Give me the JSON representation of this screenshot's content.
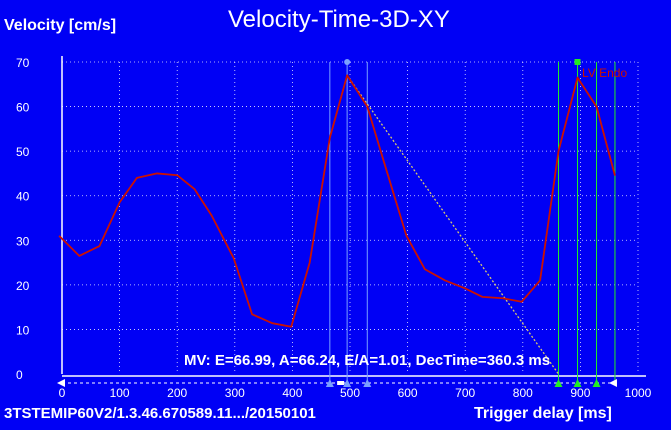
{
  "window": {
    "title": "Velocity-Time-3D-XY",
    "study_id": "3TSTEMIP60V2/1.3.46.670589.11.../20150101"
  },
  "measurement": {
    "readout": "MV: E=66.99, A=66.24, E/A=1.01, DecTime=360.3 ms"
  },
  "colors": {
    "background": "#0000f5",
    "curve": "#cc1100",
    "decel_line": "#d8c870",
    "blue_markers": "#7aa0ff",
    "green_markers": "#22ee22"
  },
  "chart_data": {
    "type": "line",
    "title": "Velocity-Time-3D-XY",
    "xlabel": "Trigger delay [ms]",
    "ylabel": "Velocity [cm/s]",
    "xlim": [
      0,
      1000
    ],
    "ylim": [
      0,
      70
    ],
    "xticks": [
      0,
      100,
      200,
      300,
      400,
      500,
      600,
      700,
      800,
      900,
      1000
    ],
    "yticks": [
      0,
      10,
      20,
      30,
      40,
      50,
      60,
      70
    ],
    "grid": true,
    "series": [
      {
        "name": "LV Endo",
        "x": [
          -5,
          30,
          65,
          100,
          130,
          165,
          200,
          230,
          260,
          298,
          330,
          365,
          398,
          430,
          465,
          495,
          530,
          565,
          598,
          630,
          665,
          700,
          730,
          765,
          798,
          830,
          862,
          895,
          928,
          960
        ],
        "y": [
          31,
          26.5,
          28.7,
          38.5,
          44,
          45,
          44.6,
          41.5,
          35.5,
          26,
          13.4,
          11.4,
          10.6,
          25,
          53,
          67,
          60,
          45,
          31,
          23.5,
          21,
          19.2,
          17.3,
          17,
          16.2,
          21,
          50,
          66.5,
          60,
          44.5
        ]
      }
    ],
    "decel_line": {
      "x": [
        465,
        495,
        862
      ],
      "y": [
        53,
        67,
        0
      ]
    },
    "markers_blue": [
      465,
      495,
      530
    ],
    "markers_green": [
      862,
      895,
      928,
      960
    ]
  }
}
